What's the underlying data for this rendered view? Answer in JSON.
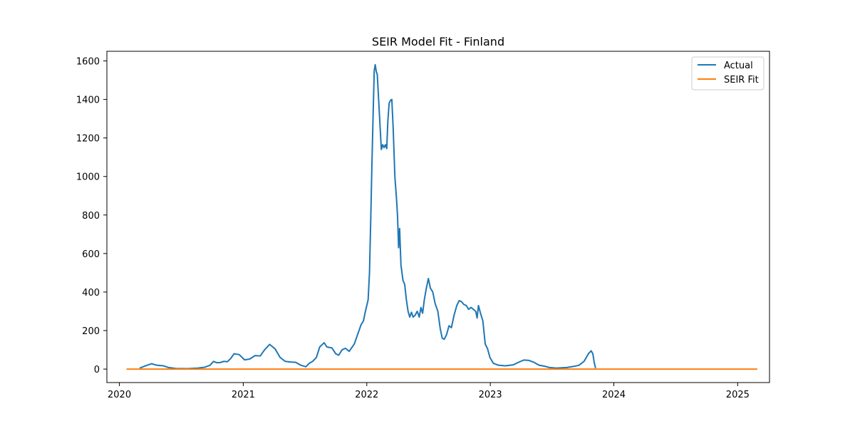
{
  "chart_data": {
    "type": "line",
    "title": "SEIR Model Fit - Finland",
    "xlabel": "",
    "ylabel": "",
    "x_axis_type": "date",
    "xlim": [
      "2019-11-25",
      "2025-04-05"
    ],
    "ylim": [
      -70,
      1650
    ],
    "x_ticks": [
      "2020-01-01",
      "2021-01-01",
      "2022-01-01",
      "2023-01-01",
      "2024-01-01",
      "2025-01-01"
    ],
    "x_tick_labels": [
      "2020",
      "2021",
      "2022",
      "2023",
      "2024",
      "2025"
    ],
    "y_ticks": [
      0,
      200,
      400,
      600,
      800,
      1000,
      1200,
      1400,
      1600
    ],
    "y_tick_labels": [
      "0",
      "200",
      "400",
      "600",
      "800",
      "1000",
      "1200",
      "1400",
      "1600"
    ],
    "grid": false,
    "legend": "top-right",
    "series": [
      {
        "name": "Actual",
        "color": "#1f77b4",
        "points": [
          [
            "2020-03-01",
            5
          ],
          [
            "2020-03-20",
            18
          ],
          [
            "2020-04-05",
            28
          ],
          [
            "2020-04-20",
            20
          ],
          [
            "2020-05-10",
            17
          ],
          [
            "2020-05-25",
            8
          ],
          [
            "2020-06-15",
            3
          ],
          [
            "2020-07-20",
            2
          ],
          [
            "2020-08-20",
            5
          ],
          [
            "2020-09-10",
            10
          ],
          [
            "2020-09-25",
            20
          ],
          [
            "2020-10-05",
            40
          ],
          [
            "2020-10-15",
            33
          ],
          [
            "2020-10-25",
            34
          ],
          [
            "2020-11-05",
            40
          ],
          [
            "2020-11-15",
            38
          ],
          [
            "2020-11-25",
            55
          ],
          [
            "2020-12-05",
            80
          ],
          [
            "2020-12-20",
            75
          ],
          [
            "2021-01-05",
            48
          ],
          [
            "2021-01-20",
            52
          ],
          [
            "2021-02-05",
            70
          ],
          [
            "2021-02-20",
            68
          ],
          [
            "2021-03-05",
            100
          ],
          [
            "2021-03-20",
            128
          ],
          [
            "2021-04-05",
            105
          ],
          [
            "2021-04-20",
            60
          ],
          [
            "2021-05-05",
            40
          ],
          [
            "2021-05-20",
            37
          ],
          [
            "2021-06-05",
            35
          ],
          [
            "2021-06-20",
            20
          ],
          [
            "2021-07-05",
            12
          ],
          [
            "2021-07-15",
            30
          ],
          [
            "2021-07-25",
            40
          ],
          [
            "2021-08-05",
            60
          ],
          [
            "2021-08-15",
            115
          ],
          [
            "2021-08-28",
            137
          ],
          [
            "2021-09-05",
            115
          ],
          [
            "2021-09-20",
            110
          ],
          [
            "2021-10-01",
            80
          ],
          [
            "2021-10-10",
            72
          ],
          [
            "2021-10-20",
            100
          ],
          [
            "2021-10-30",
            108
          ],
          [
            "2021-11-10",
            92
          ],
          [
            "2021-11-25",
            130
          ],
          [
            "2021-12-05",
            180
          ],
          [
            "2021-12-15",
            230
          ],
          [
            "2021-12-22",
            250
          ],
          [
            "2021-12-28",
            300
          ],
          [
            "2022-01-05",
            360
          ],
          [
            "2022-01-09",
            500
          ],
          [
            "2022-01-13",
            800
          ],
          [
            "2022-01-16",
            1050
          ],
          [
            "2022-01-20",
            1340
          ],
          [
            "2022-01-23",
            1550
          ],
          [
            "2022-01-26",
            1580
          ],
          [
            "2022-01-29",
            1545
          ],
          [
            "2022-02-01",
            1530
          ],
          [
            "2022-02-05",
            1400
          ],
          [
            "2022-02-09",
            1270
          ],
          [
            "2022-02-13",
            1140
          ],
          [
            "2022-02-17",
            1165
          ],
          [
            "2022-02-21",
            1150
          ],
          [
            "2022-02-25",
            1165
          ],
          [
            "2022-03-01",
            1145
          ],
          [
            "2022-03-04",
            1280
          ],
          [
            "2022-03-08",
            1380
          ],
          [
            "2022-03-12",
            1395
          ],
          [
            "2022-03-16",
            1400
          ],
          [
            "2022-03-20",
            1250
          ],
          [
            "2022-03-25",
            1000
          ],
          [
            "2022-03-30",
            880
          ],
          [
            "2022-04-02",
            790
          ],
          [
            "2022-04-05",
            630
          ],
          [
            "2022-04-08",
            730
          ],
          [
            "2022-04-12",
            540
          ],
          [
            "2022-04-18",
            460
          ],
          [
            "2022-04-23",
            440
          ],
          [
            "2022-04-28",
            360
          ],
          [
            "2022-05-03",
            300
          ],
          [
            "2022-05-08",
            270
          ],
          [
            "2022-05-13",
            295
          ],
          [
            "2022-05-18",
            270
          ],
          [
            "2022-05-24",
            280
          ],
          [
            "2022-05-30",
            300
          ],
          [
            "2022-06-05",
            270
          ],
          [
            "2022-06-10",
            320
          ],
          [
            "2022-06-15",
            290
          ],
          [
            "2022-06-20",
            360
          ],
          [
            "2022-06-26",
            420
          ],
          [
            "2022-07-02",
            470
          ],
          [
            "2022-07-08",
            420
          ],
          [
            "2022-07-15",
            400
          ],
          [
            "2022-07-22",
            340
          ],
          [
            "2022-07-30",
            300
          ],
          [
            "2022-08-06",
            210
          ],
          [
            "2022-08-12",
            160
          ],
          [
            "2022-08-18",
            155
          ],
          [
            "2022-08-25",
            180
          ],
          [
            "2022-09-01",
            225
          ],
          [
            "2022-09-08",
            215
          ],
          [
            "2022-09-16",
            280
          ],
          [
            "2022-09-24",
            330
          ],
          [
            "2022-10-01",
            355
          ],
          [
            "2022-10-08",
            350
          ],
          [
            "2022-10-15",
            335
          ],
          [
            "2022-10-22",
            330
          ],
          [
            "2022-10-29",
            310
          ],
          [
            "2022-11-05",
            320
          ],
          [
            "2022-11-12",
            310
          ],
          [
            "2022-11-19",
            300
          ],
          [
            "2022-11-23",
            265
          ],
          [
            "2022-11-27",
            330
          ],
          [
            "2022-12-03",
            290
          ],
          [
            "2022-12-10",
            250
          ],
          [
            "2022-12-17",
            130
          ],
          [
            "2022-12-24",
            105
          ],
          [
            "2022-12-31",
            60
          ],
          [
            "2023-01-10",
            30
          ],
          [
            "2023-01-25",
            20
          ],
          [
            "2023-02-15",
            17
          ],
          [
            "2023-03-10",
            22
          ],
          [
            "2023-03-25",
            35
          ],
          [
            "2023-04-10",
            47
          ],
          [
            "2023-04-25",
            45
          ],
          [
            "2023-05-10",
            35
          ],
          [
            "2023-05-25",
            20
          ],
          [
            "2023-06-10",
            15
          ],
          [
            "2023-06-25",
            8
          ],
          [
            "2023-07-15",
            5
          ],
          [
            "2023-08-15",
            8
          ],
          [
            "2023-09-05",
            14
          ],
          [
            "2023-09-20",
            20
          ],
          [
            "2023-10-05",
            40
          ],
          [
            "2023-10-18",
            80
          ],
          [
            "2023-10-26",
            95
          ],
          [
            "2023-10-31",
            80
          ],
          [
            "2023-11-04",
            35
          ],
          [
            "2023-11-08",
            5
          ]
        ]
      },
      {
        "name": "SEIR Fit",
        "color": "#ff7f0e",
        "points": [
          [
            "2020-01-22",
            0
          ],
          [
            "2025-02-28",
            0
          ]
        ]
      }
    ]
  }
}
